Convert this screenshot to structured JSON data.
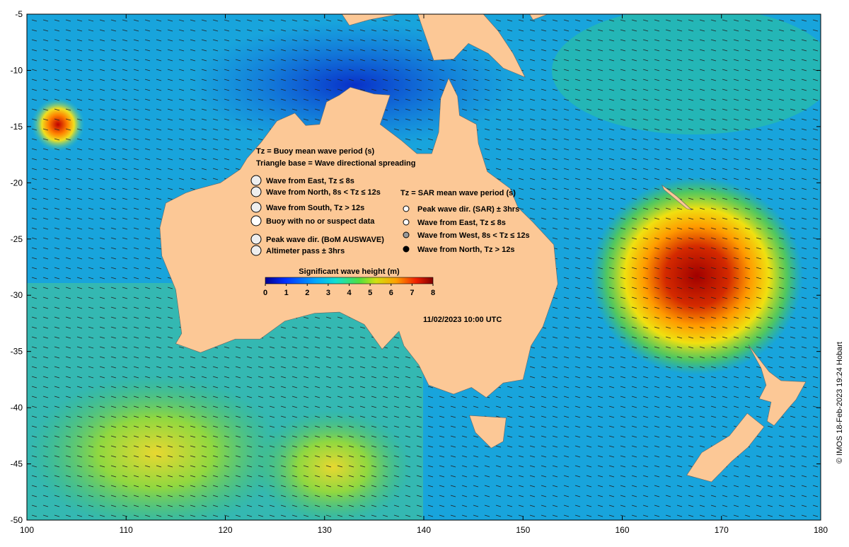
{
  "map": {
    "xlim": [
      100,
      180
    ],
    "ylim": [
      -50,
      -5
    ],
    "xticks": [
      100,
      110,
      120,
      130,
      140,
      150,
      160,
      170,
      180
    ],
    "yticks": [
      -5,
      -10,
      -15,
      -20,
      -25,
      -30,
      -35,
      -40,
      -45,
      -50
    ]
  },
  "legend": {
    "buoy_header": [
      "Tz = Buoy mean wave period (s)",
      "Triangle base = Wave directional spreading"
    ],
    "buoy_items": [
      "Wave from East, Tz ≤ 8s",
      "Wave from North, 8s < Tz ≤ 12s",
      "Wave from South, Tz > 12s",
      "Buoy with no or suspect data",
      "Peak wave dir. (BoM AUSWAVE)",
      "Altimeter pass ± 3hrs"
    ],
    "sar_header": "Tz = SAR mean wave period (s)",
    "sar_items": [
      "Peak wave dir. (SAR) ± 3hrs",
      "Wave from East, Tz ≤ 8s",
      "Wave from West, 8s < Tz ≤ 12s",
      "Wave from North, Tz > 12s"
    ]
  },
  "colorbar": {
    "title": "Significant wave height (m)",
    "lim": [
      0,
      8
    ],
    "ticks": [
      0,
      1,
      2,
      3,
      4,
      5,
      6,
      7,
      8
    ]
  },
  "timestamp": "11/02/2023 10:00 UTC",
  "credit": "© IMOS 18-Feb-2023 19:24 Hobart"
}
